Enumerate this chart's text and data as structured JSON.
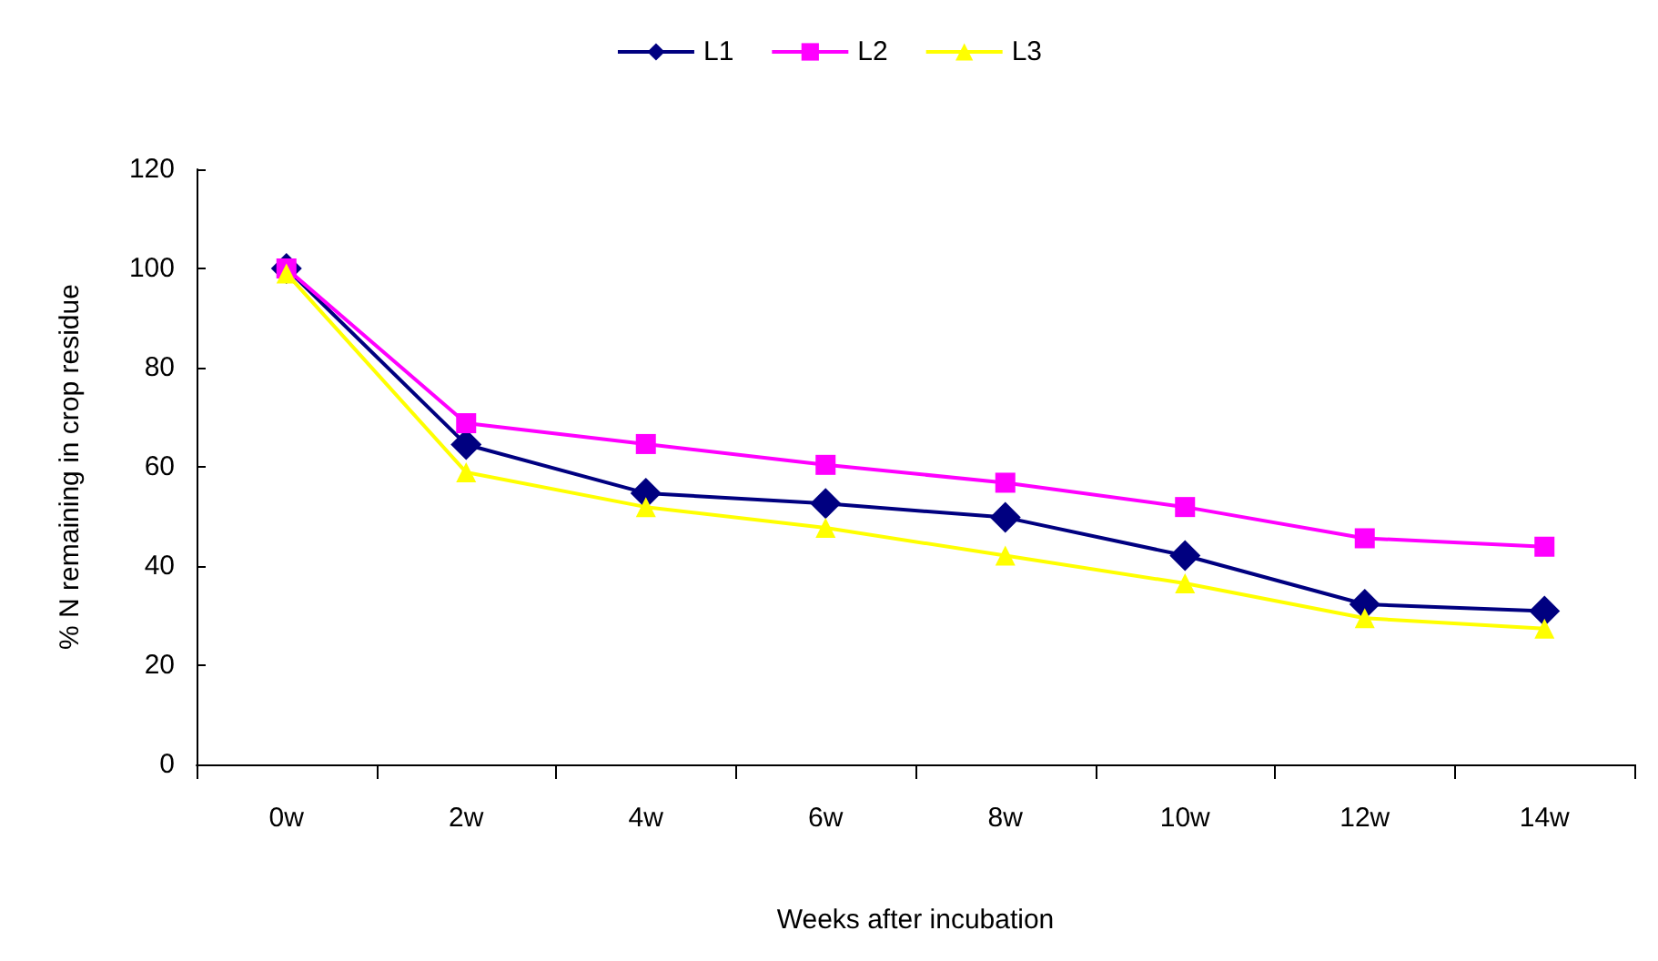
{
  "chart_data": {
    "type": "line",
    "xlabel": "Weeks after incubation",
    "ylabel": "% N remaining in crop residue",
    "categories": [
      "0w",
      "2w",
      "4w",
      "6w",
      "8w",
      "10w",
      "12w",
      "14w"
    ],
    "series": [
      {
        "name": "L1",
        "color": "#000080",
        "marker": "diamond",
        "values": [
          100,
          64.5,
          54.7,
          52.6,
          49.8,
          42.1,
          32.3,
          30.9
        ]
      },
      {
        "name": "L2",
        "color": "#ff00ff",
        "marker": "square",
        "values": [
          100,
          68.8,
          64.6,
          60.4,
          56.8,
          51.9,
          45.6,
          43.9
        ]
      },
      {
        "name": "L3",
        "color": "#ffff00",
        "marker": "triangle",
        "values": [
          99,
          58.9,
          51.9,
          47.7,
          42.1,
          36.5,
          29.5,
          27.4
        ]
      }
    ],
    "ylim": [
      0,
      120
    ],
    "yticks": [
      0,
      20,
      40,
      60,
      80,
      100,
      120
    ],
    "grid": false,
    "legend": "top"
  }
}
